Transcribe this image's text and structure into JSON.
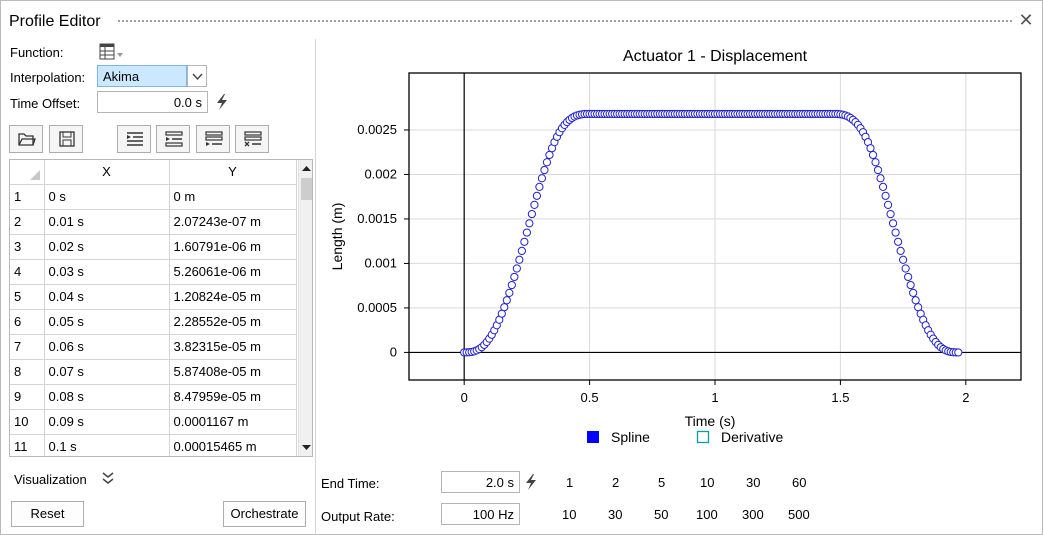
{
  "window": {
    "title": "Profile Editor",
    "close_glyph": "✕"
  },
  "form": {
    "function_label": "Function:",
    "function_icon": "table-icon",
    "interpolation_label": "Interpolation:",
    "interpolation_value": "Akima",
    "time_offset_label": "Time Offset:",
    "time_offset_value": "0.0 s"
  },
  "toolbar": [
    "open-icon",
    "save-icon",
    "insert-row-above-icon",
    "insert-row-below-icon",
    "append-row-icon",
    "delete-row-icon"
  ],
  "table": {
    "columns": [
      "X",
      "Y"
    ],
    "rows": [
      {
        "n": "1",
        "x": "0 s",
        "y": "0 m"
      },
      {
        "n": "2",
        "x": "0.01 s",
        "y": "2.07243e-07 m"
      },
      {
        "n": "3",
        "x": "0.02 s",
        "y": "1.60791e-06 m"
      },
      {
        "n": "4",
        "x": "0.03 s",
        "y": "5.26061e-06 m"
      },
      {
        "n": "5",
        "x": "0.04 s",
        "y": "1.20824e-05 m"
      },
      {
        "n": "6",
        "x": "0.05 s",
        "y": "2.28552e-05 m"
      },
      {
        "n": "7",
        "x": "0.06 s",
        "y": "3.82315e-05 m"
      },
      {
        "n": "8",
        "x": "0.07 s",
        "y": "5.87408e-05 m"
      },
      {
        "n": "9",
        "x": "0.08 s",
        "y": "8.47959e-05 m"
      },
      {
        "n": "10",
        "x": "0.09 s",
        "y": "0.0001167 m"
      },
      {
        "n": "11",
        "x": "0.1 s",
        "y": "0.00015465 m"
      }
    ]
  },
  "visualization_label": "Visualization",
  "buttons": {
    "reset": "Reset",
    "orchestrate": "Orchestrate"
  },
  "bottom": {
    "end_time_label": "End Time:",
    "end_time_value": "2.0 s",
    "output_rate_label": "Output Rate:",
    "output_rate_value": "100 Hz",
    "end_time_presets": [
      "1",
      "2",
      "5",
      "10",
      "30",
      "60"
    ],
    "rate_presets": [
      "10",
      "30",
      "50",
      "100",
      "300",
      "500"
    ]
  },
  "chart_data": {
    "type": "scatter",
    "title": "Actuator 1 - Displacement",
    "xlabel": "Time (s)",
    "ylabel": "Length (m)",
    "xlim": [
      -0.22,
      2.22
    ],
    "ylim": [
      -0.00031,
      0.00314
    ],
    "xticks": [
      0,
      0.5,
      1,
      1.5,
      2
    ],
    "xtick_labels": [
      "0",
      "0.5",
      "1",
      "1.5",
      "2"
    ],
    "yticks": [
      0,
      0.0005,
      0.001,
      0.0015,
      0.002,
      0.0025
    ],
    "ytick_labels": [
      "0",
      "0.0005",
      "0.001",
      "0.0015",
      "0.002",
      "0.0025"
    ],
    "grid": true,
    "legend_position": "bottom",
    "legend": [
      {
        "name": "Spline",
        "color": "#0000ff",
        "style": "filled-square"
      },
      {
        "name": "Derivative",
        "color": "#00a0a0",
        "style": "hollow-square"
      }
    ],
    "series": [
      {
        "name": "Spline",
        "marker": "hollow-circle",
        "color": "#2222cc",
        "x_start": 0,
        "x_step": 0.01,
        "y": [
          0,
          2.07e-07,
          1.608e-06,
          5.261e-06,
          1.208e-05,
          2.286e-05,
          3.823e-05,
          5.874e-05,
          8.48e-05,
          0.0001167,
          0.00015465,
          0.0001989,
          0.000249,
          0.000305,
          0.000367,
          0.000435,
          0.000508,
          0.000586,
          0.000669,
          0.000757,
          0.000848,
          0.000943,
          0.001041,
          0.001141,
          0.001243,
          0.001347,
          0.001451,
          0.001555,
          0.001658,
          0.00176,
          0.00186,
          0.001957,
          0.002049,
          0.002137,
          0.002219,
          0.002295,
          0.002363,
          0.002423,
          0.002475,
          0.002519,
          0.002557,
          0.002588,
          0.002614,
          0.002635,
          0.002651,
          0.002663,
          0.002671,
          0.002676,
          0.002679,
          0.00268,
          0.00268,
          0.00268,
          0.00268,
          0.00268,
          0.00268,
          0.00268,
          0.00268,
          0.00268,
          0.00268,
          0.00268,
          0.00268,
          0.00268,
          0.00268,
          0.00268,
          0.00268,
          0.00268,
          0.00268,
          0.00268,
          0.00268,
          0.00268,
          0.00268,
          0.00268,
          0.00268,
          0.00268,
          0.00268,
          0.00268,
          0.00268,
          0.00268,
          0.00268,
          0.00268,
          0.00268,
          0.00268,
          0.00268,
          0.00268,
          0.00268,
          0.00268,
          0.00268,
          0.00268,
          0.00268,
          0.00268,
          0.00268,
          0.00268,
          0.00268,
          0.00268,
          0.00268,
          0.00268,
          0.00268,
          0.00268,
          0.00268,
          0.00268,
          0.00268,
          0.00268,
          0.00268,
          0.00268,
          0.00268,
          0.00268,
          0.00268,
          0.00268,
          0.00268,
          0.00268,
          0.00268,
          0.00268,
          0.00268,
          0.00268,
          0.00268,
          0.00268,
          0.00268,
          0.00268,
          0.00268,
          0.00268,
          0.00268,
          0.00268,
          0.00268,
          0.00268,
          0.00268,
          0.00268,
          0.00268,
          0.00268,
          0.00268,
          0.00268,
          0.00268,
          0.00268,
          0.00268,
          0.00268,
          0.00268,
          0.00268,
          0.00268,
          0.00268,
          0.00268,
          0.00268,
          0.00268,
          0.00268,
          0.00268,
          0.00268,
          0.00268,
          0.00268,
          0.00268,
          0.00268,
          0.00268,
          0.002679,
          0.002676,
          0.002671,
          0.002663,
          0.002651,
          0.002635,
          0.002614,
          0.002588,
          0.002557,
          0.002519,
          0.002475,
          0.002423,
          0.002363,
          0.002295,
          0.002219,
          0.002137,
          0.002049,
          0.001957,
          0.00186,
          0.00176,
          0.001658,
          0.001555,
          0.001451,
          0.001347,
          0.001243,
          0.001141,
          0.001041,
          0.000943,
          0.000848,
          0.000757,
          0.000669,
          0.000586,
          0.000508,
          0.000435,
          0.000367,
          0.000305,
          0.000249,
          0.0001989,
          0.00015465,
          0.0001167,
          8.48e-05,
          5.874e-05,
          3.823e-05,
          2.286e-05,
          1.208e-05,
          5.261e-06,
          1.608e-06,
          2.07e-07,
          0
        ]
      }
    ]
  }
}
